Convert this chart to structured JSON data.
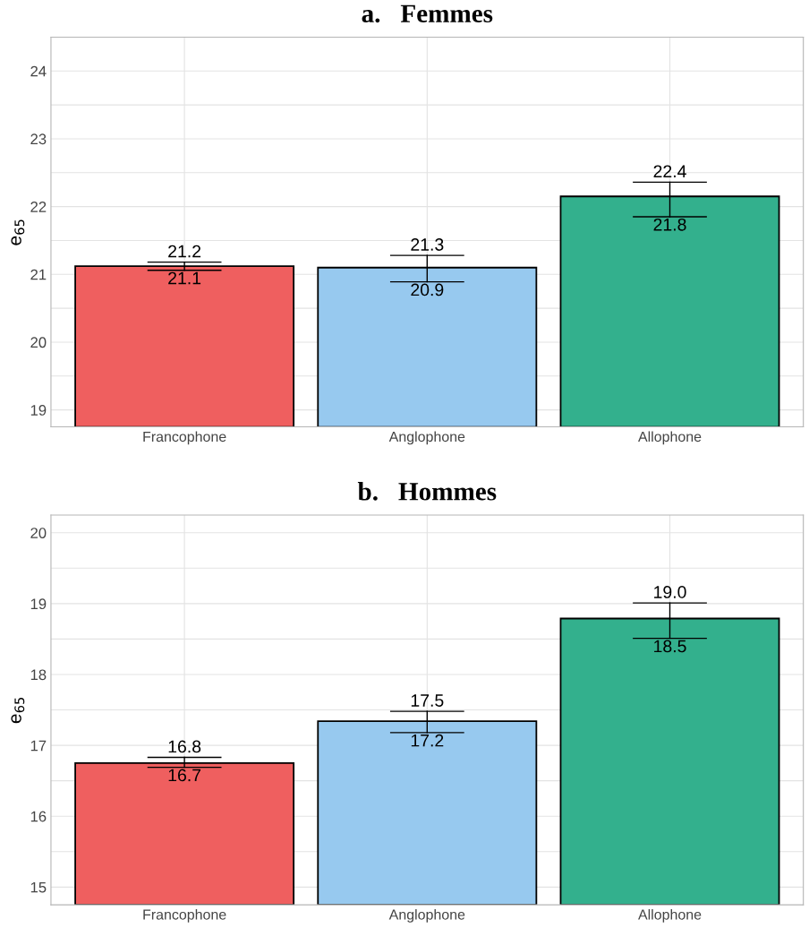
{
  "chart_data": [
    {
      "type": "bar",
      "title": "a.   Femmes",
      "ylabel": "e$_{65}$",
      "categories": [
        "Francophone",
        "Anglophone",
        "Allophone"
      ],
      "values": [
        21.12,
        21.1,
        22.15
      ],
      "colors": [
        "#ef5f5f",
        "#97c9ef",
        "#33b08d"
      ],
      "errors": [
        [
          21.06,
          21.18
        ],
        [
          20.89,
          21.28
        ],
        [
          21.85,
          22.36
        ]
      ],
      "ylim": [
        18.75,
        24.5
      ],
      "yticks": [
        19,
        {
          "value": 19.5,
          "label": null
        },
        20,
        {
          "value": 20.5,
          "label": null
        },
        21,
        {
          "value": 21.5,
          "label": null
        },
        22,
        {
          "value": 22.5,
          "label": null
        },
        23,
        {
          "value": 23.5,
          "label": null
        },
        24
      ],
      "grid": true,
      "annotations": [
        {
          "text": "21.2",
          "x": "Francophone",
          "y": 21.18
        },
        {
          "text": "21.1",
          "x": "Francophone",
          "y": 21.06
        },
        {
          "text": "21.3",
          "x": "Anglophone",
          "y": 21.28
        },
        {
          "text": "20.9",
          "x": "Anglophone",
          "y": 20.89
        },
        {
          "text": "22.4",
          "x": "Allophone",
          "y": 22.36
        },
        {
          "text": "21.8",
          "x": "Allophone",
          "y": 21.85
        }
      ]
    },
    {
      "type": "bar",
      "title": "b.   Hommes",
      "ylabel": "e$_{65}$",
      "categories": [
        "Francophone",
        "Anglophone",
        "Allophone"
      ],
      "values": [
        16.75,
        17.34,
        18.79
      ],
      "colors": [
        "#ef5f5f",
        "#97c9ef",
        "#33b08d"
      ],
      "errors": [
        [
          16.69,
          16.83
        ],
        [
          17.18,
          17.48
        ],
        [
          18.51,
          19.01
        ]
      ],
      "ylim": [
        14.75,
        20.25
      ],
      "yticks": [
        15,
        {
          "value": 15.5,
          "label": null
        },
        16,
        {
          "value": 16.5,
          "label": null
        },
        17,
        {
          "value": 17.5,
          "label": null
        },
        18,
        {
          "value": 18.5,
          "label": null
        },
        19,
        {
          "value": 19.5,
          "label": null
        },
        20
      ],
      "grid": true,
      "annotations": [
        {
          "text": "16.8",
          "x": "Francophone",
          "y": 16.83
        },
        {
          "text": "16.7",
          "x": "Francophone",
          "y": 16.69
        },
        {
          "text": "17.5",
          "x": "Anglophone",
          "y": 17.48
        },
        {
          "text": "17.2",
          "x": "Anglophone",
          "y": 17.18
        },
        {
          "text": "19.0",
          "x": "Allophone",
          "y": 19.01
        },
        {
          "text": "18.5",
          "x": "Allophone",
          "y": 18.51
        }
      ]
    }
  ]
}
